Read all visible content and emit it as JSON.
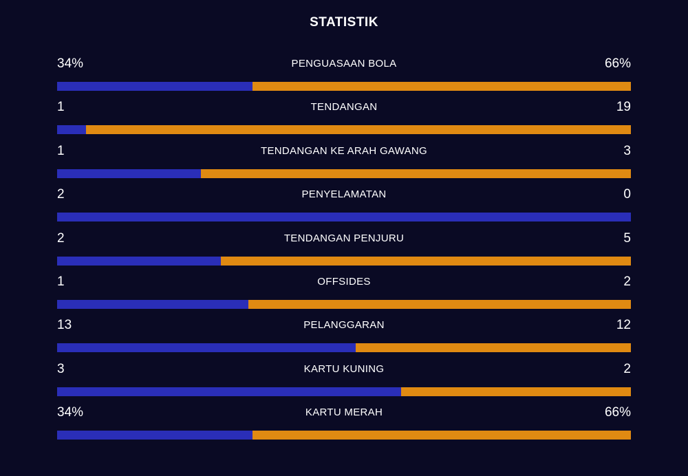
{
  "title": "STATISTIK",
  "colors": {
    "background": "#0a0a24",
    "home": "#2a2eb8",
    "away": "#e08a12",
    "text": "#ffffff"
  },
  "stats": [
    {
      "label": "PENGUASAAN BOLA",
      "left": "34%",
      "right": "66%",
      "home_fraction": 0.34
    },
    {
      "label": "TENDANGAN",
      "left": "1",
      "right": "19",
      "home_fraction": 0.05
    },
    {
      "label": "TENDANGAN KE ARAH GAWANG",
      "left": "1",
      "right": "3",
      "home_fraction": 0.25
    },
    {
      "label": "PENYELAMATAN",
      "left": "2",
      "right": "0",
      "home_fraction": 1.0
    },
    {
      "label": "TENDANGAN PENJURU",
      "left": "2",
      "right": "5",
      "home_fraction": 0.2857
    },
    {
      "label": "OFFSIDES",
      "left": "1",
      "right": "2",
      "home_fraction": 0.3333
    },
    {
      "label": "PELANGGARAN",
      "left": "13",
      "right": "12",
      "home_fraction": 0.52
    },
    {
      "label": "KARTU KUNING",
      "left": "3",
      "right": "2",
      "home_fraction": 0.6
    },
    {
      "label": "KARTU MERAH",
      "left": "34%",
      "right": "66%",
      "home_fraction": 0.34
    }
  ]
}
